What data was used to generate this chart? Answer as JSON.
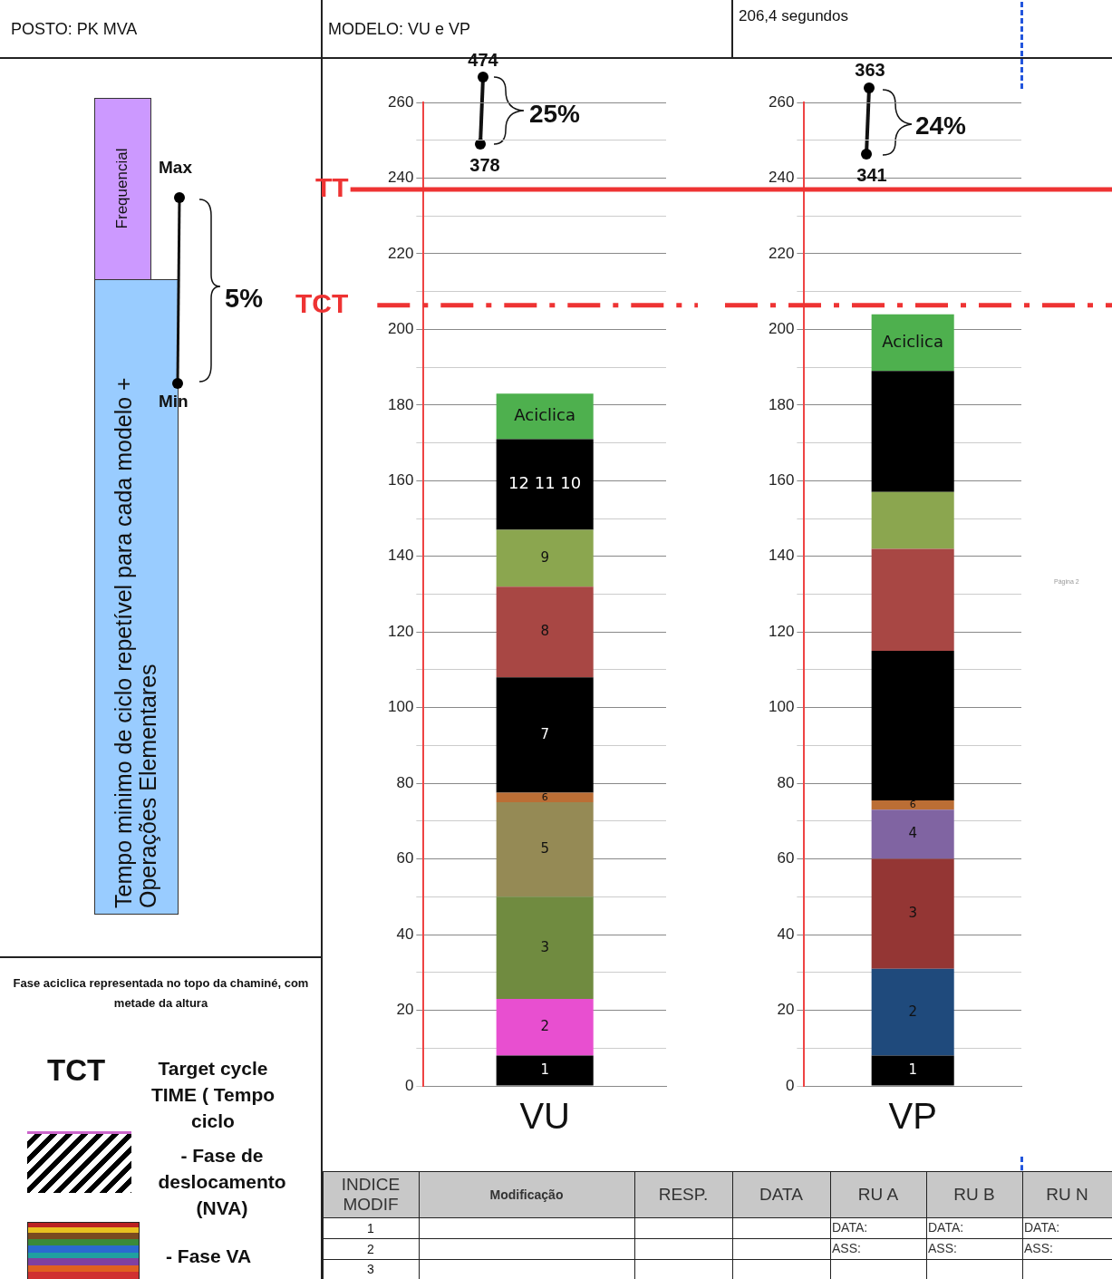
{
  "chart_data": [
    {
      "type": "bar",
      "stacked": true,
      "categories": [
        "VU"
      ],
      "ylim": [
        0,
        260
      ],
      "yticks": [
        0,
        {
          "value": 10,
          "label": null
        },
        20,
        {
          "value": 30,
          "label": null
        },
        40,
        {
          "value": 50,
          "label": null
        },
        60,
        {
          "value": 70,
          "label": null
        },
        80,
        {
          "value": 90,
          "label": null
        },
        100,
        {
          "value": 110,
          "label": null
        },
        120,
        {
          "value": 130,
          "label": null
        },
        140,
        {
          "value": 150,
          "label": null
        },
        160,
        {
          "value": 170,
          "label": null
        },
        180,
        {
          "value": 190,
          "label": null
        },
        200,
        {
          "value": 210,
          "label": null
        },
        220,
        {
          "value": 230,
          "label": null
        },
        240,
        {
          "value": 250,
          "label": null
        },
        260
      ],
      "grid": "y",
      "annotations": [
        "474",
        "378",
        "25%"
      ],
      "ref_lines": [
        {
          "axis": "y",
          "value": 237,
          "label": "TT",
          "color": "#ee3333",
          "line_style": "solid"
        },
        {
          "axis": "y",
          "value": 206.4,
          "label": "TCT",
          "color": "#ee3333",
          "line_style": "dashed"
        }
      ],
      "series": [
        {
          "name": "1",
          "color": "#000000",
          "values": [
            8
          ]
        },
        {
          "name": "2",
          "color": "#e84fd0",
          "values": [
            15
          ]
        },
        {
          "name": "3",
          "color": "#708b40",
          "values": [
            27
          ]
        },
        {
          "name": "5",
          "color": "#958a55",
          "values": [
            25
          ]
        },
        {
          "name": "6",
          "color": "#bb6e35",
          "values": [
            2.5
          ]
        },
        {
          "name": "7",
          "color": "#000000",
          "values": [
            30.5
          ]
        },
        {
          "name": "8",
          "color": "#a84744",
          "values": [
            24
          ]
        },
        {
          "name": "9",
          "color": "#8ba64f",
          "values": [
            15
          ]
        },
        {
          "name": "12 11 10",
          "color": "#000000",
          "values": [
            24
          ]
        },
        {
          "name": "Aciclica",
          "color": "#4eb04e",
          "values": [
            12
          ]
        }
      ]
    },
    {
      "type": "bar",
      "stacked": true,
      "categories": [
        "VP"
      ],
      "ylim": [
        0,
        260
      ],
      "yticks": [
        0,
        {
          "value": 10,
          "label": null
        },
        20,
        {
          "value": 30,
          "label": null
        },
        40,
        {
          "value": 50,
          "label": null
        },
        60,
        {
          "value": 70,
          "label": null
        },
        80,
        {
          "value": 90,
          "label": null
        },
        100,
        {
          "value": 110,
          "label": null
        },
        120,
        {
          "value": 130,
          "label": null
        },
        140,
        {
          "value": 150,
          "label": null
        },
        160,
        {
          "value": 170,
          "label": null
        },
        180,
        {
          "value": 190,
          "label": null
        },
        200,
        {
          "value": 210,
          "label": null
        },
        220,
        {
          "value": 230,
          "label": null
        },
        240,
        {
          "value": 250,
          "label": null
        },
        260
      ],
      "grid": "y",
      "annotations": [
        "363",
        "341",
        "24%"
      ],
      "ref_lines": [
        {
          "axis": "y",
          "value": 237,
          "color": "#ee3333",
          "line_style": "solid"
        },
        {
          "axis": "y",
          "value": 206.4,
          "color": "#ee3333",
          "line_style": "dashed"
        }
      ],
      "series": [
        {
          "name": "1",
          "color": "#000000",
          "values": [
            8
          ]
        },
        {
          "name": "2",
          "color": "#1f4a7c",
          "values": [
            23
          ]
        },
        {
          "name": "3",
          "color": "#943634",
          "values": [
            29
          ]
        },
        {
          "name": "4",
          "color": "#8064a2",
          "values": [
            13
          ]
        },
        {
          "name": "6",
          "color": "#bb6e35",
          "values": [
            2.5
          ]
        },
        {
          "color": "#000000",
          "values": [
            39.5
          ]
        },
        {
          "color": "#a84744",
          "values": [
            27
          ]
        },
        {
          "color": "#8ba64f",
          "values": [
            15
          ]
        },
        {
          "color": "#000000",
          "values": [
            32
          ]
        },
        {
          "name": "Aciclica",
          "color": "#4eb04e",
          "values": [
            15
          ]
        }
      ]
    },
    {
      "type": "other",
      "annotations": [
        "POSTO: PK MVA",
        "MODELO:  VU e VP",
        "206,4 segundos",
        "Frequencial",
        "Tempo minimo de ciclo repetível para cada modelo + Operações Elementares",
        "Max",
        "Min",
        "5%",
        "Fase aciclica representada no topo da chaminé, com metade da altura",
        "TCT",
        "Target cycle TIME ( Tempo  ciclo",
        "- Fase de deslocamento (NVA)",
        "- Fase VA",
        "Página 2",
        "INDICE MODIF",
        "Modificação",
        "RESP.",
        "DATA",
        "RU A",
        "RU B",
        "RU N",
        "1",
        "2",
        "3",
        "DATA:",
        "DATA:",
        "DATA:",
        "ASS:",
        "ASS:",
        "ASS:"
      ]
    }
  ]
}
